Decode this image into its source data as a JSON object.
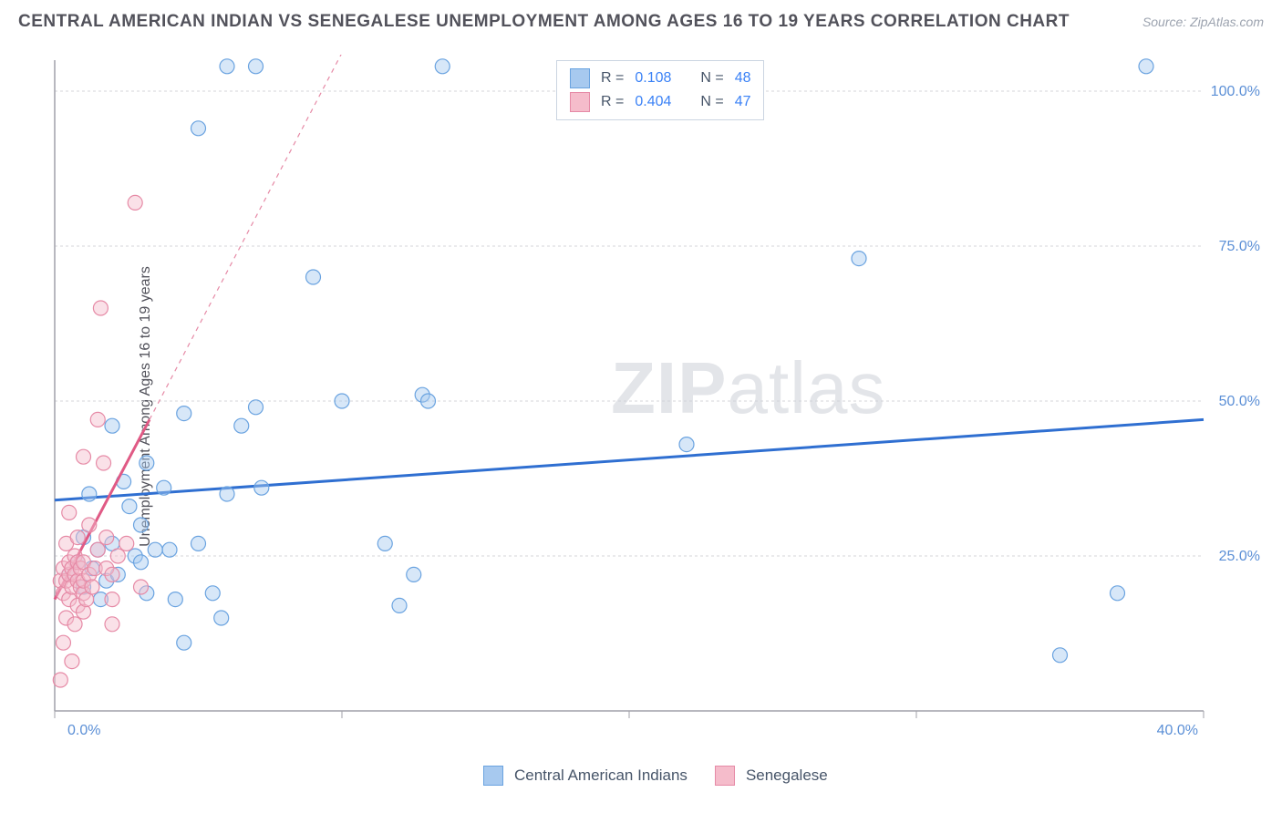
{
  "header": {
    "title": "CENTRAL AMERICAN INDIAN VS SENEGALESE UNEMPLOYMENT AMONG AGES 16 TO 19 YEARS CORRELATION CHART",
    "source": "Source: ZipAtlas.com"
  },
  "watermark": {
    "zip": "ZIP",
    "atlas": "atlas"
  },
  "chart": {
    "type": "scatter",
    "ylabel": "Unemployment Among Ages 16 to 19 years",
    "xlim": [
      0,
      40
    ],
    "ylim": [
      0,
      105
    ],
    "xtick_step": 10,
    "ytick_step": 25,
    "xtick_labels": [
      "0.0%",
      "",
      "",
      "",
      "40.0%"
    ],
    "ytick_labels": [
      "",
      "25.0%",
      "50.0%",
      "75.0%",
      "100.0%"
    ],
    "background_color": "#ffffff",
    "grid_color": "#d4d4d8",
    "axis_tick_label_color": "#5b8fd6",
    "axis_label_fontsize": 16,
    "marker_radius": 8,
    "marker_stroke_width": 1.2,
    "marker_fill_opacity": 0.45,
    "series": [
      {
        "name": "Central American Indians",
        "color_stroke": "#6aa3e0",
        "color_fill": "#a7c9ef",
        "R": "0.108",
        "N": "48",
        "trend": {
          "x1": 0,
          "y1": 34,
          "x2": 40,
          "y2": 47,
          "width": 3,
          "dash_after_x": null
        },
        "points": [
          [
            0.5,
            22
          ],
          [
            0.8,
            24
          ],
          [
            1,
            28
          ],
          [
            1,
            20
          ],
          [
            1.2,
            35
          ],
          [
            1.3,
            23
          ],
          [
            1.5,
            26
          ],
          [
            1.6,
            18
          ],
          [
            1.8,
            21
          ],
          [
            2,
            27
          ],
          [
            2,
            46
          ],
          [
            2.2,
            22
          ],
          [
            2.4,
            37
          ],
          [
            2.6,
            33
          ],
          [
            2.8,
            25
          ],
          [
            3,
            24
          ],
          [
            3,
            30
          ],
          [
            3.2,
            40
          ],
          [
            3.2,
            19
          ],
          [
            3.5,
            26
          ],
          [
            3.8,
            36
          ],
          [
            4,
            26
          ],
          [
            4.2,
            18
          ],
          [
            4.5,
            48
          ],
          [
            4.5,
            11
          ],
          [
            5,
            94
          ],
          [
            5,
            27
          ],
          [
            5.5,
            19
          ],
          [
            5.8,
            15
          ],
          [
            6,
            104
          ],
          [
            6,
            35
          ],
          [
            6.5,
            46
          ],
          [
            7,
            104
          ],
          [
            7,
            49
          ],
          [
            7.2,
            36
          ],
          [
            9,
            70
          ],
          [
            10,
            50
          ],
          [
            11.5,
            27
          ],
          [
            12,
            17
          ],
          [
            12.5,
            22
          ],
          [
            12.8,
            51
          ],
          [
            13,
            50
          ],
          [
            13.5,
            104
          ],
          [
            22,
            43
          ],
          [
            28,
            73
          ],
          [
            35,
            9
          ],
          [
            37,
            19
          ],
          [
            38,
            104
          ]
        ]
      },
      {
        "name": "Senegalese",
        "color_stroke": "#e68aa6",
        "color_fill": "#f5bccb",
        "R": "0.404",
        "N": "47",
        "trend": {
          "x1": 0,
          "y1": 18,
          "x2": 3.3,
          "y2": 47,
          "width": 3,
          "dash_after_x": 3.3,
          "dash_x2": 11,
          "dash_y2": 115
        },
        "points": [
          [
            0.2,
            5
          ],
          [
            0.2,
            21
          ],
          [
            0.3,
            11
          ],
          [
            0.3,
            23
          ],
          [
            0.3,
            19
          ],
          [
            0.4,
            15
          ],
          [
            0.4,
            21
          ],
          [
            0.4,
            27
          ],
          [
            0.5,
            18
          ],
          [
            0.5,
            22
          ],
          [
            0.5,
            24
          ],
          [
            0.5,
            32
          ],
          [
            0.6,
            8
          ],
          [
            0.6,
            20
          ],
          [
            0.6,
            23
          ],
          [
            0.7,
            14
          ],
          [
            0.7,
            22
          ],
          [
            0.7,
            25
          ],
          [
            0.8,
            17
          ],
          [
            0.8,
            21
          ],
          [
            0.8,
            24
          ],
          [
            0.8,
            28
          ],
          [
            0.9,
            20
          ],
          [
            0.9,
            23
          ],
          [
            1,
            16
          ],
          [
            1,
            19
          ],
          [
            1,
            21
          ],
          [
            1,
            24
          ],
          [
            1,
            41
          ],
          [
            1.1,
            18
          ],
          [
            1.2,
            22
          ],
          [
            1.2,
            30
          ],
          [
            1.3,
            20
          ],
          [
            1.4,
            23
          ],
          [
            1.5,
            47
          ],
          [
            1.5,
            26
          ],
          [
            1.6,
            65
          ],
          [
            1.7,
            40
          ],
          [
            1.8,
            23
          ],
          [
            1.8,
            28
          ],
          [
            2,
            22
          ],
          [
            2,
            18
          ],
          [
            2,
            14
          ],
          [
            2.2,
            25
          ],
          [
            2.5,
            27
          ],
          [
            2.8,
            82
          ],
          [
            3,
            20
          ]
        ]
      }
    ],
    "bottom_legend": {
      "items": [
        {
          "label": "Central American Indians",
          "stroke": "#6aa3e0",
          "fill": "#a7c9ef"
        },
        {
          "label": "Senegalese",
          "stroke": "#e68aa6",
          "fill": "#f5bccb"
        }
      ]
    },
    "stats_box": {
      "R_label": "R =",
      "N_label": "N ="
    }
  }
}
